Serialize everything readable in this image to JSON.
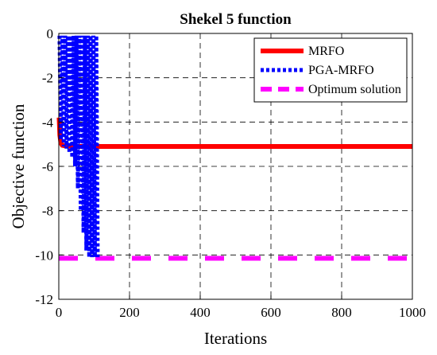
{
  "chart_data": {
    "type": "line",
    "title": "Shekel 5 function",
    "xlabel": "Iterations",
    "ylabel": "Objective function",
    "xlim": [
      0,
      1000
    ],
    "ylim": [
      -12,
      0
    ],
    "xticks": [
      0,
      200,
      400,
      600,
      800,
      1000
    ],
    "yticks": [
      -12,
      -10,
      -8,
      -6,
      -4,
      -2,
      0
    ],
    "grid": true,
    "legend_position": "top-right",
    "series": [
      {
        "name": "MRFO",
        "color": "#ff0000",
        "style": "solid",
        "x": [
          1,
          3,
          6,
          10,
          20,
          40,
          60,
          80,
          100,
          200,
          400,
          600,
          800,
          1000
        ],
        "y": [
          -3.8,
          -4.6,
          -4.95,
          -5.05,
          -5.08,
          -5.1,
          -5.1,
          -5.1,
          -5.1,
          -5.1,
          -5.1,
          -5.1,
          -5.1,
          -5.1
        ]
      },
      {
        "name": "PGA-MRFO",
        "color": "#0000ff",
        "style": "dotted",
        "oscillation_range": [
          0,
          110
        ],
        "x": [
          2,
          6,
          10,
          14,
          18,
          22,
          26,
          30,
          34,
          38,
          42,
          46,
          50,
          54,
          58,
          62,
          66,
          70,
          74,
          78,
          82,
          86,
          90,
          94,
          98,
          102,
          106,
          110
        ],
        "y": [
          -0.1,
          -4.8,
          -0.1,
          -5.1,
          -0.1,
          -5.2,
          -0.1,
          -5.4,
          -0.1,
          -5.6,
          -0.1,
          -6.0,
          -0.1,
          -7.0,
          -0.1,
          -8.0,
          -0.1,
          -9.0,
          -0.1,
          -9.8,
          -0.1,
          -10.1,
          -0.1,
          -10.1,
          -0.1,
          -10.1,
          -0.1,
          -10.1
        ]
      },
      {
        "name": "Optimum solution",
        "color": "#ff00ff",
        "style": "dashed",
        "x": [
          0,
          1000
        ],
        "y": [
          -10.15,
          -10.15
        ]
      }
    ]
  }
}
